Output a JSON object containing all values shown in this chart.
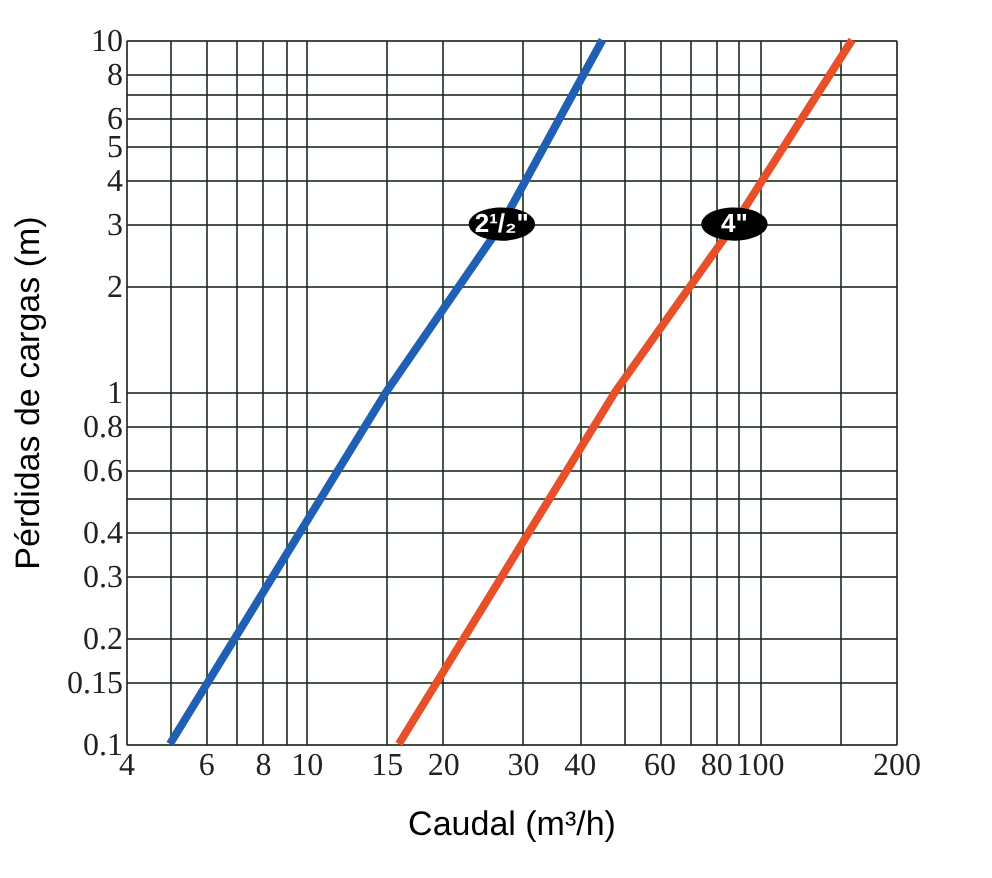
{
  "chart_data": {
    "type": "line",
    "xlabel": "Caudal (m³/h)",
    "ylabel": "Pérdidas de cargas (m)",
    "log": "xy",
    "grid": true,
    "legend": false,
    "marker": "none",
    "line_style": "solid",
    "xlim": [
      4,
      200
    ],
    "xticks": [
      4,
      {
        "value": 5,
        "label": null
      },
      6,
      {
        "value": 7,
        "label": null
      },
      8,
      {
        "value": 9,
        "label": null
      },
      10,
      15,
      20,
      30,
      40,
      {
        "value": 50,
        "label": null
      },
      60,
      {
        "value": 70,
        "label": null
      },
      80,
      {
        "value": 90,
        "label": null
      },
      100,
      {
        "value": 150,
        "label": null
      },
      200
    ],
    "ylim": [
      0.1,
      10
    ],
    "yticks": [
      0.1,
      0.15,
      0.2,
      0.3,
      0.4,
      {
        "value": 0.5,
        "label": null
      },
      0.6,
      0.8,
      1,
      2,
      3,
      4,
      5,
      6,
      {
        "value": 7,
        "label": null
      },
      8,
      10
    ],
    "series": [
      {
        "name": "2¹/₂\"",
        "color": "#1f5fb4",
        "x": [
          5,
          15,
          27,
          45
        ],
        "values": [
          0.1,
          1,
          3,
          10
        ]
      },
      {
        "name": "4\"",
        "color": "#e8502a",
        "x": [
          16,
          48,
          88,
          160
        ],
        "values": [
          0.1,
          1,
          3,
          10
        ]
      }
    ]
  }
}
